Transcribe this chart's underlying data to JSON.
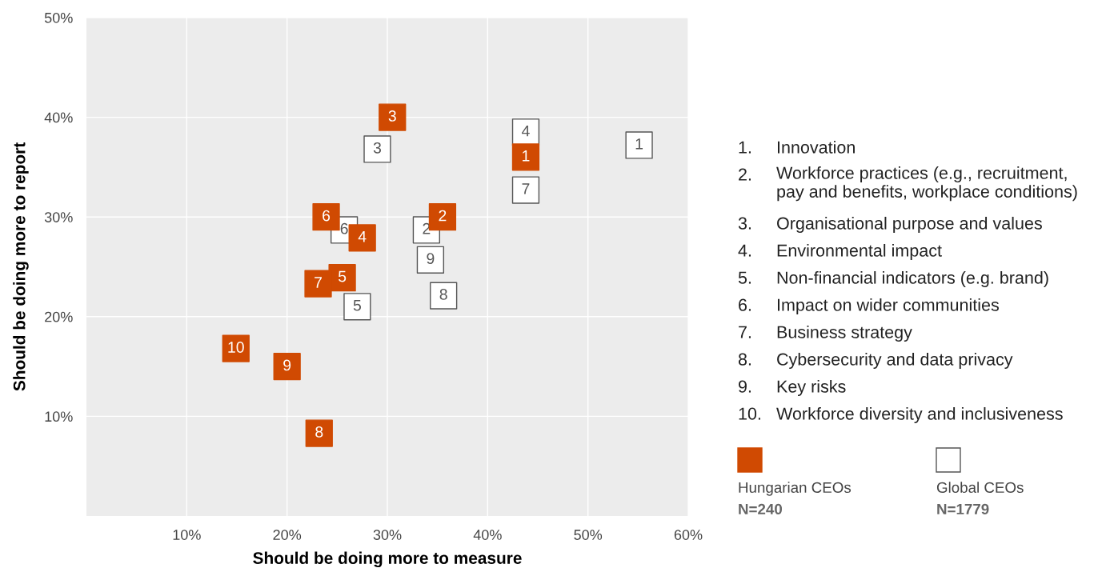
{
  "chart_data": {
    "type": "scatter",
    "marker": "square",
    "grid": true,
    "legend": "right",
    "xlabel": "Should be doing more to measure",
    "ylabel": "Should be doing more to report",
    "xlim": [
      0,
      60
    ],
    "ylim": [
      0,
      50
    ],
    "xticks": [
      {
        "value": 10,
        "label": "10%"
      },
      {
        "value": 20,
        "label": "20%"
      },
      {
        "value": 30,
        "label": "30%"
      },
      {
        "value": 40,
        "label": "40%"
      },
      {
        "value": 50,
        "label": "50%"
      },
      {
        "value": 60,
        "label": "60%"
      }
    ],
    "yticks": [
      {
        "value": 10,
        "label": "10%"
      },
      {
        "value": 20,
        "label": "20%"
      },
      {
        "value": 30,
        "label": "30%"
      },
      {
        "value": 40,
        "label": "40%"
      },
      {
        "value": 50,
        "label": "50%"
      }
    ],
    "series": [
      {
        "name": "Hungarian CEOs",
        "color": "#d04a02",
        "x": [
          43.8,
          35.5,
          30.5,
          27.5,
          25.5,
          23.9,
          23.1,
          23.2,
          20.0,
          14.9
        ],
        "values": [
          36.0,
          30.0,
          40.0,
          27.9,
          23.9,
          30.0,
          23.3,
          8.3,
          15.0,
          16.8
        ]
      },
      {
        "name": "Global CEOs",
        "color": "#ffffff",
        "x": [
          55.1,
          33.9,
          29.0,
          43.8,
          27.0,
          25.7,
          43.8,
          35.6,
          34.3
        ],
        "values": [
          37.2,
          28.7,
          36.8,
          38.5,
          21.0,
          28.7,
          32.7,
          22.1,
          25.7
        ]
      }
    ],
    "annotations": [
      {
        "text": "1",
        "x": 43.8,
        "y": 36.0
      },
      {
        "text": "2",
        "x": 35.5,
        "y": 30.0
      },
      {
        "text": "3",
        "x": 30.5,
        "y": 40.0
      },
      {
        "text": "4",
        "x": 27.5,
        "y": 27.9
      },
      {
        "text": "5",
        "x": 25.5,
        "y": 23.9
      },
      {
        "text": "6",
        "x": 23.9,
        "y": 30.0
      },
      {
        "text": "7",
        "x": 23.1,
        "y": 23.3
      },
      {
        "text": "8",
        "x": 23.2,
        "y": 8.3
      },
      {
        "text": "9",
        "x": 20.0,
        "y": 15.0
      },
      {
        "text": "10",
        "x": 14.9,
        "y": 16.8
      },
      {
        "text": "1",
        "x": 55.1,
        "y": 37.2
      },
      {
        "text": "2",
        "x": 33.9,
        "y": 28.7
      },
      {
        "text": "3",
        "x": 29.0,
        "y": 36.8
      },
      {
        "text": "4",
        "x": 43.8,
        "y": 38.5
      },
      {
        "text": "5",
        "x": 27.0,
        "y": 21.0
      },
      {
        "text": "6",
        "x": 25.7,
        "y": 28.7
      },
      {
        "text": "7",
        "x": 43.8,
        "y": 32.7
      },
      {
        "text": "8",
        "x": 35.6,
        "y": 22.1
      },
      {
        "text": "9",
        "x": 34.3,
        "y": 25.7
      },
      "1. Innovation",
      "2. Workforce practices (e.g., recruitment,\npay and benefits, workplace conditions)",
      "3. Organisational purpose and values",
      "4. Environmental impact",
      "5. Non-financial indicators (e.g. brand)",
      "6. Impact on wider communities",
      "7. Business strategy",
      "8. Cybersecurity and data privacy",
      "9. Key risks",
      "10. Workforce diversity and inclusiveness",
      "N=240",
      "N=1779"
    ]
  }
}
